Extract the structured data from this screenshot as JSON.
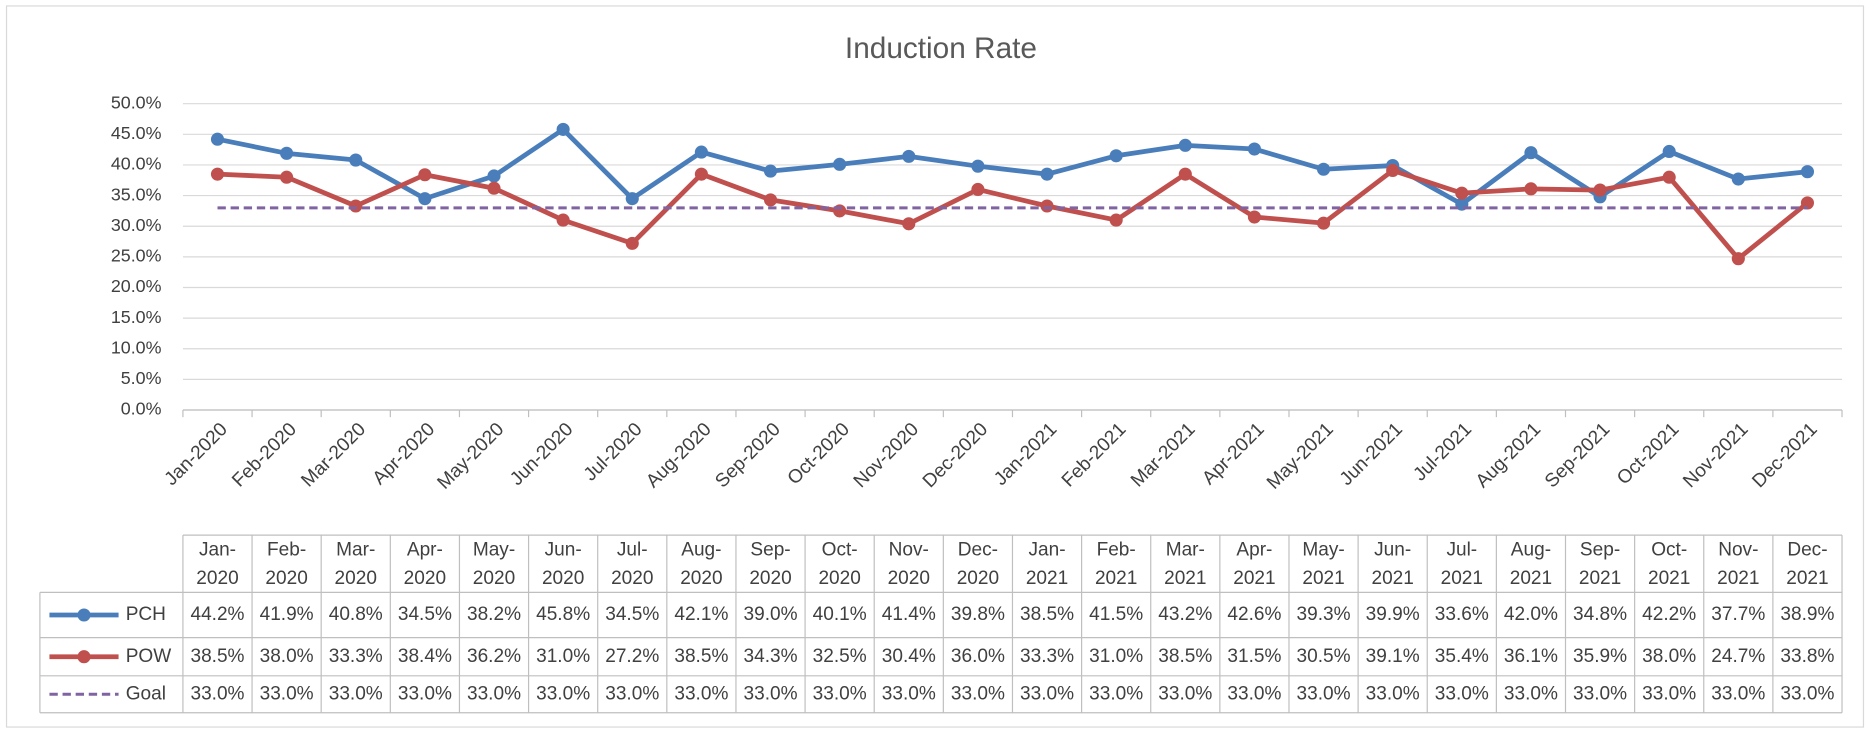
{
  "chart_data": {
    "type": "line",
    "title": "Induction Rate",
    "categories": [
      "Jan-2020",
      "Feb-2020",
      "Mar-2020",
      "Apr-2020",
      "May-2020",
      "Jun-2020",
      "Jul-2020",
      "Aug-2020",
      "Sep-2020",
      "Oct-2020",
      "Nov-2020",
      "Dec-2020",
      "Jan-2021",
      "Feb-2021",
      "Mar-2021",
      "Apr-2021",
      "May-2021",
      "Jun-2021",
      "Jul-2021",
      "Aug-2021",
      "Sep-2021",
      "Oct-2021",
      "Nov-2021",
      "Dec-2021"
    ],
    "series": [
      {
        "name": "PCH",
        "color": "#4a7ebb",
        "marker": true,
        "dashed": false,
        "values": [
          44.2,
          41.9,
          40.8,
          34.5,
          38.2,
          45.8,
          34.5,
          42.1,
          39.0,
          40.1,
          41.4,
          39.8,
          38.5,
          41.5,
          43.2,
          42.6,
          39.3,
          39.9,
          33.6,
          42.0,
          34.8,
          42.2,
          37.7,
          38.9
        ],
        "value_labels": [
          "44.2%",
          "41.9%",
          "40.8%",
          "34.5%",
          "38.2%",
          "45.8%",
          "34.5%",
          "42.1%",
          "39.0%",
          "40.1%",
          "41.4%",
          "39.8%",
          "38.5%",
          "41.5%",
          "43.2%",
          "42.6%",
          "39.3%",
          "39.9%",
          "33.6%",
          "42.0%",
          "34.8%",
          "42.2%",
          "37.7%",
          "38.9%"
        ]
      },
      {
        "name": "POW",
        "color": "#c0504d",
        "marker": true,
        "dashed": false,
        "values": [
          38.5,
          38.0,
          33.3,
          38.4,
          36.2,
          31.0,
          27.2,
          38.5,
          34.3,
          32.5,
          30.4,
          36.0,
          33.3,
          31.0,
          38.5,
          31.5,
          30.5,
          39.1,
          35.4,
          36.1,
          35.9,
          38.0,
          24.7,
          33.8
        ],
        "value_labels": [
          "38.5%",
          "38.0%",
          "33.3%",
          "38.4%",
          "36.2%",
          "31.0%",
          "27.2%",
          "38.5%",
          "34.3%",
          "32.5%",
          "30.4%",
          "36.0%",
          "33.3%",
          "31.0%",
          "38.5%",
          "31.5%",
          "30.5%",
          "39.1%",
          "35.4%",
          "36.1%",
          "35.9%",
          "38.0%",
          "24.7%",
          "33.8%"
        ]
      },
      {
        "name": "Goal",
        "color": "#8064a2",
        "marker": false,
        "dashed": true,
        "values": [
          33,
          33,
          33,
          33,
          33,
          33,
          33,
          33,
          33,
          33,
          33,
          33,
          33,
          33,
          33,
          33,
          33,
          33,
          33,
          33,
          33,
          33,
          33,
          33
        ],
        "value_labels": [
          "33.0%",
          "33.0%",
          "33.0%",
          "33.0%",
          "33.0%",
          "33.0%",
          "33.0%",
          "33.0%",
          "33.0%",
          "33.0%",
          "33.0%",
          "33.0%",
          "33.0%",
          "33.0%",
          "33.0%",
          "33.0%",
          "33.0%",
          "33.0%",
          "33.0%",
          "33.0%",
          "33.0%",
          "33.0%",
          "33.0%",
          "33.0%"
        ]
      }
    ],
    "ylim": [
      0,
      50
    ],
    "yticks": [
      {
        "value": 0,
        "label": "0.0%"
      },
      {
        "value": 5,
        "label": "5.0%"
      },
      {
        "value": 10,
        "label": "10.0%"
      },
      {
        "value": 15,
        "label": "15.0%"
      },
      {
        "value": 20,
        "label": "20.0%"
      },
      {
        "value": 25,
        "label": "25.0%"
      },
      {
        "value": 30,
        "label": "30.0%"
      },
      {
        "value": 35,
        "label": "35.0%"
      },
      {
        "value": 40,
        "label": "40.0%"
      },
      {
        "value": 45,
        "label": "45.0%"
      },
      {
        "value": 50,
        "label": "50.0%"
      }
    ],
    "grid": true,
    "data_table": true
  }
}
